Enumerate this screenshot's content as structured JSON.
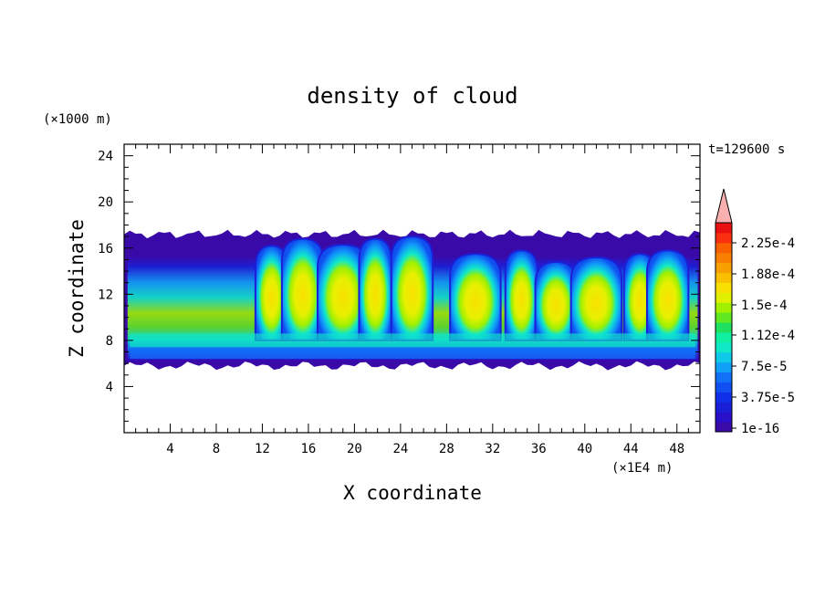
{
  "chart_data": {
    "type": "heatmap",
    "title": "density of cloud",
    "xlabel": "X coordinate",
    "ylabel": "Z coordinate",
    "x_unit": "(×1E4 m)",
    "y_unit": "(×1000 m)",
    "time_label": "t=129600 s",
    "xlim": [
      0,
      50
    ],
    "ylim": [
      0,
      25
    ],
    "x_ticks": [
      "4",
      "8",
      "12",
      "16",
      "20",
      "24",
      "28",
      "32",
      "36",
      "40",
      "44",
      "48"
    ],
    "y_ticks": [
      "4",
      "8",
      "12",
      "16",
      "20",
      "24"
    ],
    "colorbar": {
      "labels": [
        "2.25e-4",
        "1.88e-4",
        "1.5e-4",
        "1.12e-4",
        "7.5e-5",
        "3.75e-5",
        "1e-16"
      ],
      "extend": "max",
      "colors": [
        "#3a0aa8",
        "#2a10c8",
        "#1a20d8",
        "#1030e8",
        "#1050f0",
        "#1070f8",
        "#10a0f8",
        "#10c8e8",
        "#10e8c8",
        "#10f0a0",
        "#20e060",
        "#60e820",
        "#a0f000",
        "#e0f000",
        "#f8e000",
        "#f8c000",
        "#f8a000",
        "#f88000",
        "#f86000",
        "#f83010",
        "#e81010",
        "#f8b0b0"
      ]
    },
    "cloud_field": {
      "cloud_base": 5.8,
      "cloud_top": 17.2,
      "dense_core_range": [
        8.5,
        15
      ],
      "x_range": [
        0,
        50
      ],
      "dense_towers_x_centers": [
        12.8,
        15.5,
        19.0,
        21.8,
        25.0,
        30.5,
        34.5,
        37.5,
        41.0,
        44.8,
        47.2
      ],
      "tower_peak_heights": [
        16.2,
        16.8,
        16.3,
        16.8,
        17.0,
        15.5,
        15.8,
        14.8,
        15.2,
        15.5,
        15.8
      ]
    }
  }
}
